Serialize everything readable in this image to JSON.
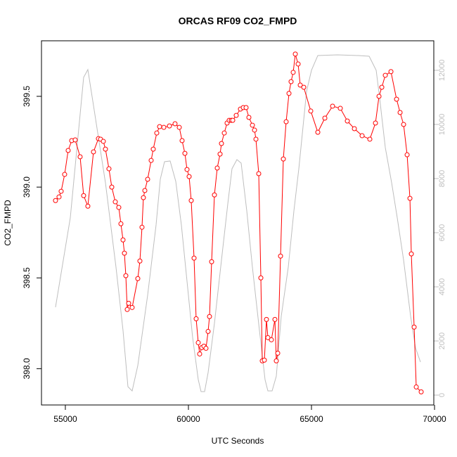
{
  "chart_data": {
    "type": "line",
    "title": "ORCAS RF09 CO2_FMPD",
    "xlabel": "UTC Seconds",
    "ylabel": "CO2_FMPD",
    "xlim": [
      54030,
      69970
    ],
    "ylim": [
      397.8,
      399.806
    ],
    "y2lim": [
      -364,
      13090
    ],
    "xticks": [
      55000,
      60000,
      65000,
      70000
    ],
    "yticks": [
      {
        "value": 398,
        "label": "398.0"
      },
      398.5,
      {
        "value": 399,
        "label": "399.0"
      },
      399.5
    ],
    "y2ticks": [
      0,
      2000,
      4000,
      6000,
      8000,
      10000,
      12000
    ],
    "series": [
      {
        "color": "#ff0000",
        "markers": true,
        "x": [
          54600,
          54743,
          54829,
          54971,
          55114,
          55257,
          55400,
          55600,
          55743,
          55914,
          56143,
          56343,
          56429,
          56543,
          56629,
          56771,
          56886,
          57029,
          57171,
          57257,
          57343,
          57400,
          57457,
          57514,
          57571,
          57714,
          57943,
          58029,
          58114,
          58171,
          58229,
          58343,
          58486,
          58571,
          58714,
          58829,
          59000,
          59229,
          59457,
          59629,
          59743,
          59857,
          59943,
          60029,
          60114,
          60229,
          60314,
          60400,
          60457,
          60543,
          60629,
          60714,
          60800,
          60857,
          60943,
          61057,
          61171,
          61286,
          61343,
          61457,
          61571,
          61657,
          61743,
          61800,
          61943,
          62114,
          62229,
          62343,
          62457,
          62600,
          62686,
          62743,
          62857,
          62943,
          63000,
          63086,
          63171,
          63229,
          63371,
          63514,
          63571,
          63629,
          63743,
          63857,
          63971,
          64086,
          64171,
          64257,
          64343,
          64457,
          64543,
          64686,
          64971,
          65257,
          65543,
          65857,
          66171,
          66457,
          66743,
          67057,
          67371,
          67600,
          67743,
          67857,
          68000,
          68229,
          68457,
          68600,
          68743,
          68886,
          69000,
          69057,
          69171,
          69257,
          69457
        ],
        "values": [
          398.926,
          398.946,
          398.977,
          399.07,
          399.202,
          399.256,
          399.26,
          399.167,
          398.953,
          398.895,
          399.194,
          399.267,
          399.264,
          399.252,
          399.209,
          399.101,
          399.0,
          398.919,
          398.888,
          398.798,
          398.709,
          398.636,
          398.512,
          398.326,
          398.36,
          398.337,
          398.496,
          398.593,
          398.779,
          398.942,
          398.981,
          399.043,
          399.147,
          399.209,
          399.298,
          399.333,
          399.329,
          399.337,
          399.349,
          399.329,
          399.256,
          399.186,
          399.097,
          399.058,
          398.926,
          398.609,
          398.275,
          398.143,
          398.081,
          398.116,
          398.124,
          398.112,
          398.205,
          398.287,
          398.589,
          398.957,
          399.105,
          399.182,
          399.24,
          399.298,
          399.353,
          399.368,
          399.368,
          399.368,
          399.395,
          399.43,
          399.438,
          399.438,
          399.384,
          399.341,
          399.314,
          399.264,
          399.074,
          398.5,
          398.043,
          398.047,
          398.271,
          398.171,
          398.159,
          398.271,
          398.043,
          398.085,
          398.62,
          399.155,
          399.36,
          399.516,
          399.581,
          399.632,
          399.733,
          399.678,
          399.562,
          399.55,
          399.419,
          399.302,
          399.38,
          399.446,
          399.434,
          399.364,
          399.322,
          399.283,
          399.264,
          399.353,
          399.5,
          399.55,
          399.616,
          399.636,
          399.484,
          399.411,
          399.345,
          399.178,
          398.938,
          398.632,
          398.229,
          397.899,
          397.872
        ]
      },
      {
        "color": "#bebebe",
        "axis": "y2",
        "x": [
          54600,
          55200,
          55743,
          55914,
          56143,
          56629,
          57057,
          57343,
          57543,
          57714,
          57943,
          58343,
          58686,
          58857,
          59029,
          59257,
          59486,
          59714,
          59943,
          60171,
          60400,
          60514,
          60657,
          60800,
          61057,
          61343,
          61600,
          61771,
          61971,
          62143,
          62371,
          62600,
          62886,
          63114,
          63229,
          63400,
          63571,
          63771,
          64057,
          64286,
          64486,
          64629,
          64800,
          65000,
          65257,
          66057,
          66914,
          67343,
          67629,
          67771,
          68000,
          68257,
          68486,
          68743,
          69029,
          69229,
          69429
        ],
        "values": [
          3247,
          6545,
          11740,
          12026,
          10701,
          7844,
          4727,
          2390,
          312,
          156,
          1091,
          3688,
          6286,
          7974,
          8623,
          8649,
          7896,
          6286,
          4208,
          2130,
          571,
          130,
          130,
          831,
          2649,
          4987,
          7065,
          8364,
          8701,
          8571,
          6805,
          4727,
          2390,
          571,
          156,
          156,
          701,
          2909,
          4727,
          6805,
          8364,
          9662,
          11221,
          12000,
          12545,
          12571,
          12545,
          12519,
          12000,
          10961,
          9143,
          7844,
          6545,
          4987,
          2909,
          1740,
          1221
        ]
      }
    ]
  }
}
